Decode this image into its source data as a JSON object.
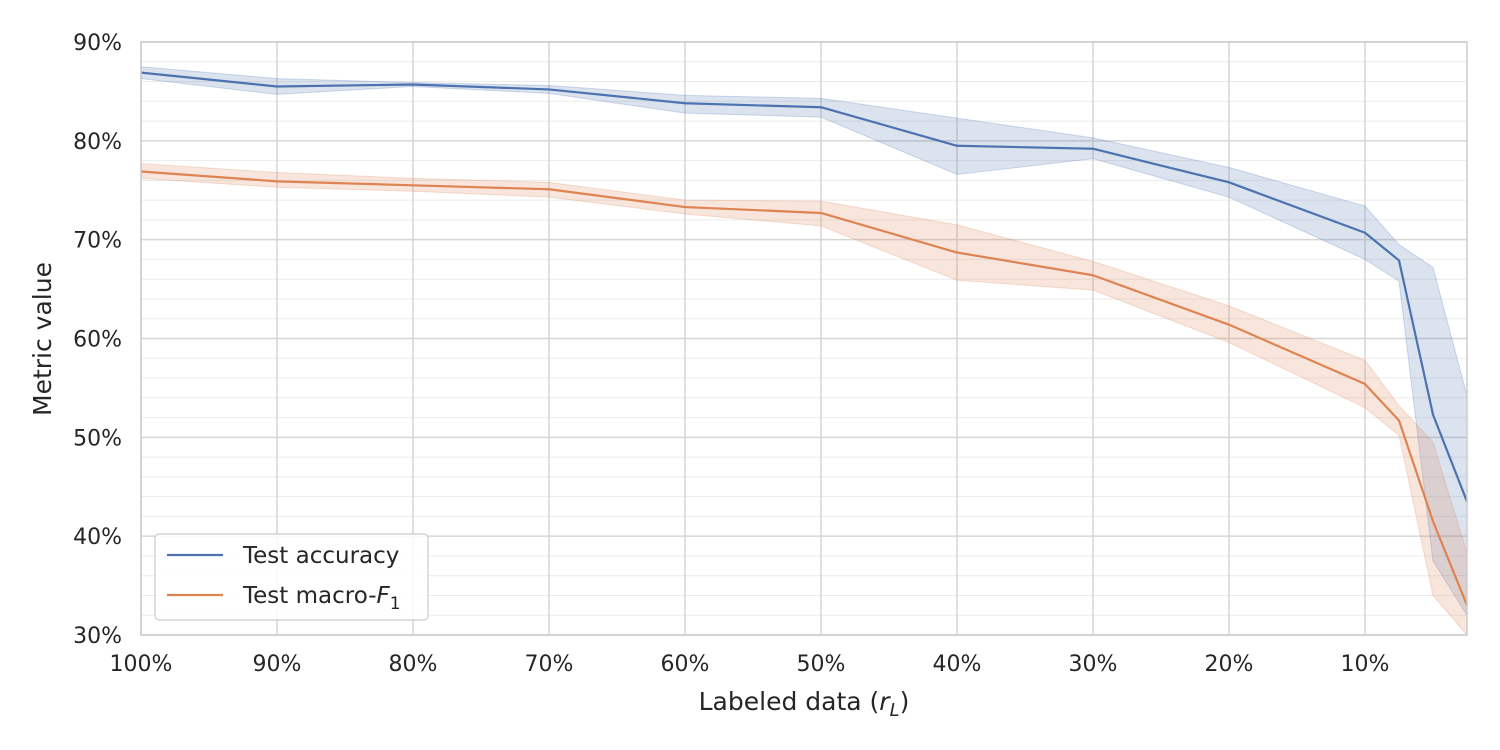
{
  "chart_data": {
    "type": "line",
    "xlabel": "Labeled data (r_L)",
    "ylabel": "Metric value",
    "ylim": [
      30,
      90
    ],
    "x_reversed": true,
    "grid": true,
    "legend": "lower-left",
    "x_ticks": [
      100,
      90,
      80,
      70,
      60,
      50,
      40,
      30,
      20,
      10
    ],
    "x_tick_labels": [
      "100%",
      "90%",
      "80%",
      "70%",
      "60%",
      "50%",
      "40%",
      "30%",
      "20%",
      "10%"
    ],
    "y_ticks": [
      30,
      40,
      50,
      60,
      70,
      80,
      90
    ],
    "y_tick_labels": [
      "30%",
      "40%",
      "50%",
      "60%",
      "70%",
      "80%",
      "90%"
    ],
    "x": [
      100,
      90,
      80,
      70,
      60,
      50,
      40,
      30,
      20,
      10,
      7.5,
      5,
      2.5
    ],
    "series": [
      {
        "name": "Test accuracy",
        "color": "#4c72b0",
        "values": [
          86.9,
          85.5,
          85.7,
          85.2,
          83.8,
          83.4,
          79.5,
          79.2,
          75.8,
          70.7,
          67.9,
          52.3,
          43.5
        ],
        "lower": [
          86.3,
          84.7,
          85.5,
          84.8,
          82.8,
          82.4,
          76.6,
          78.2,
          74.3,
          68.0,
          65.8,
          37.5,
          32.0
        ],
        "upper": [
          87.5,
          86.3,
          85.9,
          85.6,
          84.6,
          84.3,
          82.3,
          80.3,
          77.3,
          73.4,
          69.5,
          67.2,
          54.2
        ]
      },
      {
        "name": "Test macro-F1",
        "color": "#dd8452",
        "values": [
          76.9,
          75.9,
          75.5,
          75.1,
          73.3,
          72.7,
          68.7,
          66.4,
          61.4,
          55.4,
          51.7,
          41.5,
          33.0
        ],
        "lower": [
          76.2,
          75.3,
          74.9,
          74.3,
          72.6,
          71.4,
          65.9,
          64.9,
          59.6,
          53.0,
          50.2,
          34.0,
          30.0
        ],
        "upper": [
          77.7,
          76.8,
          76.2,
          75.8,
          74.0,
          73.9,
          71.5,
          67.8,
          63.3,
          57.8,
          53.2,
          49.5,
          38.3
        ]
      }
    ]
  }
}
